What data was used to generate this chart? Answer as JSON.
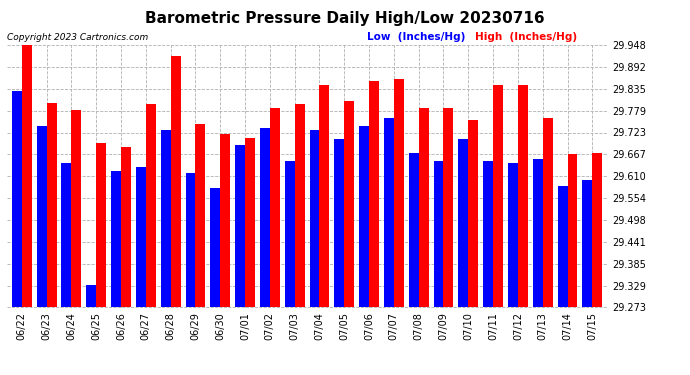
{
  "title": "Barometric Pressure Daily High/Low 20230716",
  "copyright": "Copyright 2023 Cartronics.com",
  "legend_low": "Low  (Inches/Hg)",
  "legend_high": "High  (Inches/Hg)",
  "dates": [
    "06/22",
    "06/23",
    "06/24",
    "06/25",
    "06/26",
    "06/27",
    "06/28",
    "06/29",
    "06/30",
    "07/01",
    "07/02",
    "07/03",
    "07/04",
    "07/05",
    "07/06",
    "07/07",
    "07/08",
    "07/09",
    "07/10",
    "07/11",
    "07/12",
    "07/13",
    "07/14",
    "07/15"
  ],
  "low": [
    29.83,
    29.74,
    29.645,
    29.33,
    29.625,
    29.635,
    29.73,
    29.62,
    29.58,
    29.69,
    29.735,
    29.65,
    29.73,
    29.705,
    29.74,
    29.76,
    29.67,
    29.65,
    29.705,
    29.65,
    29.645,
    29.655,
    29.585,
    29.6
  ],
  "high": [
    29.96,
    29.8,
    29.78,
    29.695,
    29.685,
    29.795,
    29.92,
    29.745,
    29.72,
    29.71,
    29.785,
    29.795,
    29.845,
    29.805,
    29.855,
    29.86,
    29.785,
    29.785,
    29.755,
    29.845,
    29.845,
    29.76,
    29.668,
    29.67
  ],
  "ymin": 29.273,
  "ymax": 29.948,
  "yticks": [
    29.273,
    29.329,
    29.385,
    29.441,
    29.498,
    29.554,
    29.61,
    29.667,
    29.723,
    29.779,
    29.835,
    29.892,
    29.948
  ],
  "low_color": "#0000ff",
  "high_color": "#ff0000",
  "background_color": "#ffffff",
  "grid_color": "#b0b0b0",
  "title_fontsize": 11,
  "tick_fontsize": 7,
  "bar_width": 0.4
}
